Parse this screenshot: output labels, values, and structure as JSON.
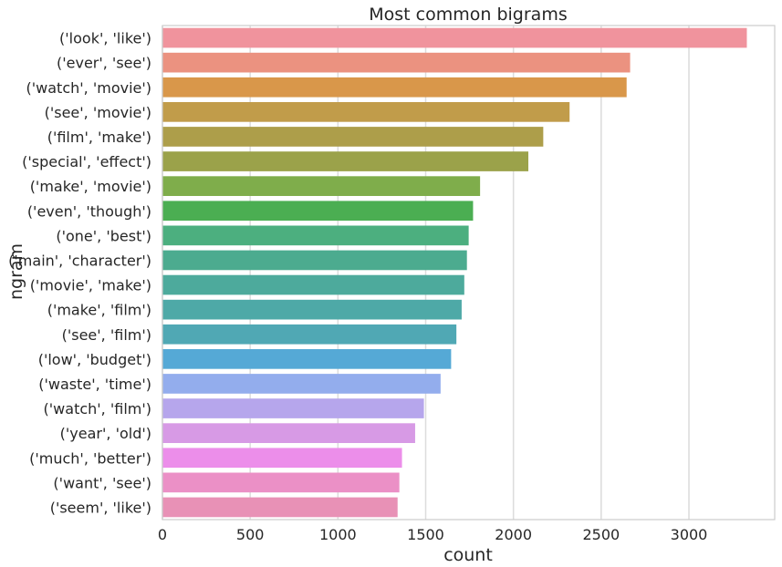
{
  "chart_data": {
    "type": "bar",
    "orientation": "horizontal",
    "title": "Most common bigrams",
    "xlabel": "count",
    "ylabel": "ngram",
    "xlim": [
      0,
      3500
    ],
    "xticks": [
      "0",
      "500",
      "1000",
      "1500",
      "2000",
      "2500",
      "3000"
    ],
    "grid": true,
    "categories": [
      "('look', 'like')",
      "('ever', 'see')",
      "('watch', 'movie')",
      "('see', 'movie')",
      "('film', 'make')",
      "('special', 'effect')",
      "('make', 'movie')",
      "('even', 'though')",
      "('one', 'best')",
      "('main', 'character')",
      "('movie', 'make')",
      "('make', 'film')",
      "('see', 'film')",
      "('low', 'budget')",
      "('waste', 'time')",
      "('watch', 'film')",
      "('year', 'old')",
      "('much', 'better')",
      "('want', 'see')",
      "('seem', 'like')"
    ],
    "values": [
      3330,
      2665,
      2645,
      2320,
      2170,
      2085,
      1810,
      1770,
      1745,
      1735,
      1720,
      1705,
      1675,
      1645,
      1585,
      1490,
      1440,
      1365,
      1350,
      1340
    ],
    "colors": [
      "#f0939d",
      "#eb9280",
      "#d9974a",
      "#c19c4a",
      "#ad9e4a",
      "#9ba24a",
      "#7fad4b",
      "#4bae52",
      "#4caf7f",
      "#4cab8f",
      "#4daa9c",
      "#4ea9a7",
      "#50a8b4",
      "#55a9d6",
      "#93aded",
      "#b6a6ec",
      "#d79ae5",
      "#ec8eea",
      "#eb90c6",
      "#e891b6"
    ]
  }
}
